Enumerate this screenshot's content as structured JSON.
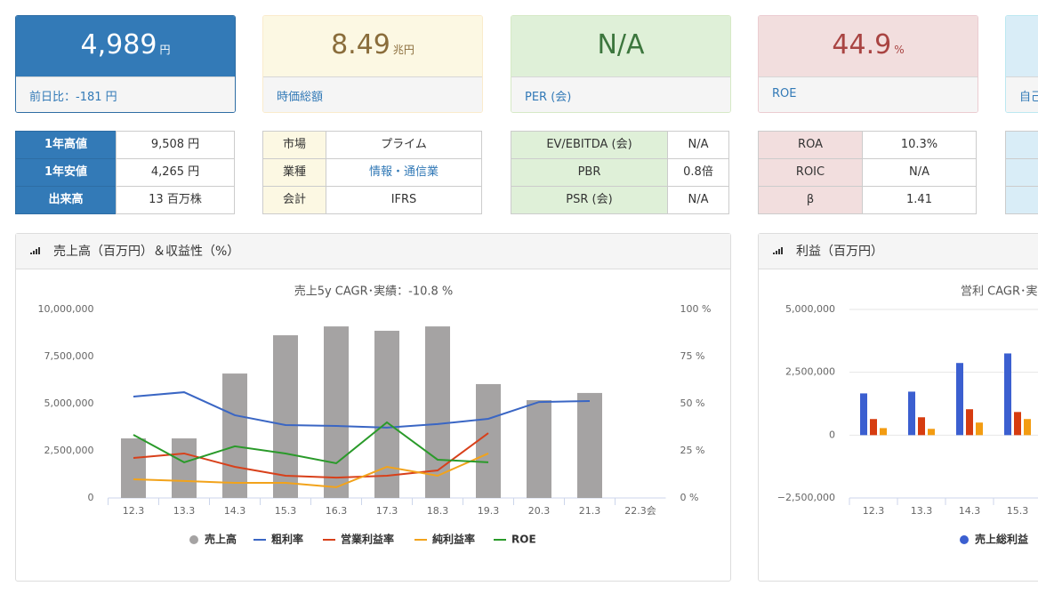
{
  "cards": [
    {
      "value": "4,989",
      "unit": "円",
      "label": "前日比：-181 円"
    },
    {
      "value": "8.49",
      "unit": "兆円",
      "label": "時価総額"
    },
    {
      "value": "N/A",
      "label": "PER (会)"
    },
    {
      "value": "44.9",
      "unit": "%",
      "label": "ROE"
    },
    {
      "label": "自己"
    }
  ],
  "tables": [
    [
      [
        "1年高値",
        "9,508 円"
      ],
      [
        "1年安値",
        "4,265 円"
      ],
      [
        "出来高",
        "13 百万株"
      ]
    ],
    [
      [
        "市場",
        "プライム"
      ],
      [
        "業種",
        "情報・通信業"
      ],
      [
        "会計",
        "IFRS"
      ]
    ],
    [
      [
        "EV/EBITDA (会)",
        "N/A"
      ],
      [
        "PBR",
        "0.8倍"
      ],
      [
        "PSR (会)",
        "N/A"
      ]
    ],
    [
      [
        "ROA",
        "10.3%"
      ],
      [
        "ROIC",
        "N/A"
      ],
      [
        "β",
        "1.41"
      ]
    ]
  ],
  "panels": [
    "売上高（百万円）＆収益性（%）",
    "利益（百万円）"
  ],
  "chart_data": [
    {
      "type": "combo",
      "title": "売上5y CAGR･実績：-10.8 %",
      "categories": [
        "12.3",
        "13.3",
        "14.3",
        "15.3",
        "16.3",
        "17.3",
        "18.3",
        "19.3",
        "20.3",
        "21.3",
        "22.3会"
      ],
      "ylim": [
        0,
        10000000
      ],
      "yticks": [
        0,
        {
          "value": 2500000,
          "label": "2,500,000"
        },
        {
          "value": 5000000,
          "label": "5,000,000"
        },
        {
          "value": 7500000,
          "label": "7,500,000"
        },
        {
          "value": 10000000,
          "label": "10,000,000"
        }
      ],
      "y2lim": [
        0,
        100
      ],
      "y2ticks": [
        {
          "value": 0,
          "label": "0 %"
        },
        {
          "value": 25,
          "label": "25 %"
        },
        {
          "value": 50,
          "label": "50 %"
        },
        {
          "value": 75,
          "label": "75 %"
        },
        {
          "value": 100,
          "label": "100 %"
        }
      ],
      "grid": false,
      "series": [
        {
          "name": "売上高",
          "type": "bar",
          "color": "#a5a3a3",
          "values": [
            3160000,
            3160000,
            6600000,
            8630000,
            9100000,
            8870000,
            9100000,
            6040000,
            5190000,
            5570000,
            null
          ]
        },
        {
          "name": "粗利率",
          "type": "line",
          "axis": "y2",
          "color": "#3a66c4",
          "values": [
            53.8,
            56.1,
            43.9,
            38.7,
            38.2,
            37.3,
            39.2,
            42,
            50.9,
            51.4,
            null
          ]
        },
        {
          "name": "営業利益率",
          "type": "line",
          "axis": "y2",
          "color": "#d8401a",
          "values": [
            21.2,
            23.6,
            16.5,
            11.8,
            10.8,
            11.8,
            14.6,
            34.4,
            null,
            null,
            null
          ]
        },
        {
          "name": "純利益率",
          "type": "line",
          "axis": "y2",
          "color": "#f2a31b",
          "values": [
            9.9,
            9,
            8,
            8,
            5.7,
            16.5,
            11.8,
            23.6,
            null,
            null,
            null
          ]
        },
        {
          "name": "ROE",
          "type": "line",
          "axis": "y2",
          "color": "#2a9a2a",
          "values": [
            33.5,
            18.9,
            27.4,
            23.6,
            18.4,
            40.1,
            20.3,
            18.9,
            null,
            null,
            null
          ]
        }
      ]
    },
    {
      "type": "bar",
      "title": "営利 CAGR･実",
      "categories": [
        "12.3",
        "13.3",
        "14.3",
        "15.3"
      ],
      "ylim": [
        -2500000,
        5000000
      ],
      "yticks": [
        {
          "value": -2500000,
          "label": "−2,500,000"
        },
        0,
        {
          "value": 2500000,
          "label": "2,500,000"
        },
        {
          "value": 5000000,
          "label": "5,000,000"
        }
      ],
      "grid": true,
      "series": [
        {
          "name": "売上総利益",
          "color": "#3b5fd0",
          "values": [
            1660000,
            1730000,
            2870000,
            3250000
          ]
        },
        {
          "color": "#d63c10",
          "values": [
            640000,
            710000,
            1030000,
            920000
          ]
        },
        {
          "color": "#f39c12",
          "values": [
            280000,
            250000,
            500000,
            640000
          ]
        }
      ]
    }
  ]
}
